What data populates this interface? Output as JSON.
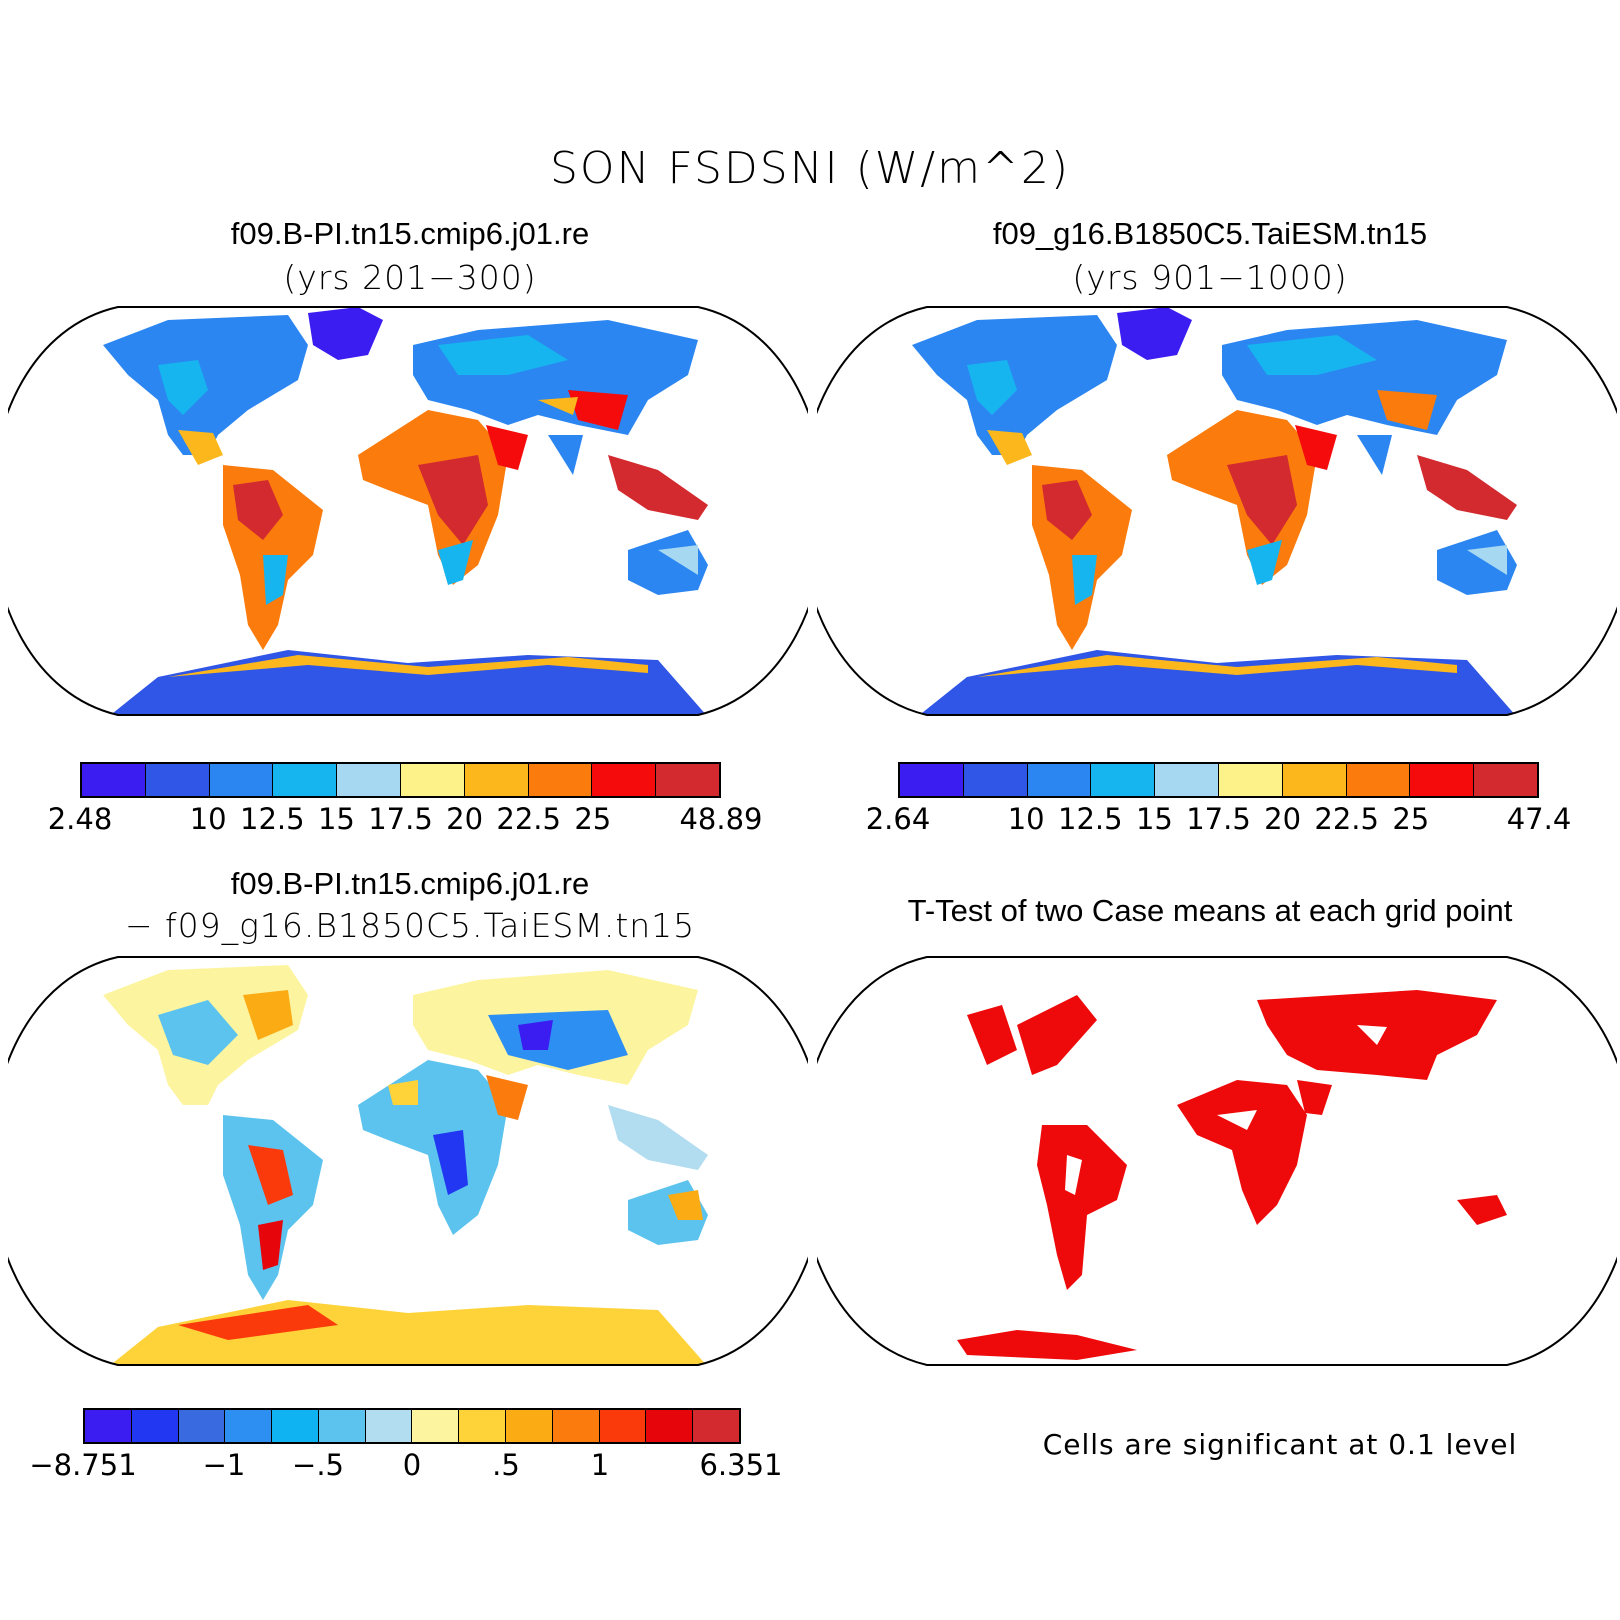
{
  "main_title": "SON FSDSNI (W/m^2)",
  "panels": {
    "top_left": {
      "title": "f09.B-PI.tn15.cmip6.j01.re",
      "subtitle": "(yrs 201−300)",
      "colorbar": {
        "colors": [
          "#3b1df2",
          "#2f56e6",
          "#2b86f1",
          "#16b5ef",
          "#a7d8f2",
          "#fdf28a",
          "#fbb71c",
          "#fb7b0c",
          "#f50b0b",
          "#d22a2e"
        ],
        "labels": [
          "2.48",
          "10",
          "12.5",
          "15",
          "17.5",
          "20",
          "22.5",
          "25",
          "48.89"
        ]
      }
    },
    "top_right": {
      "title": "f09_g16.B1850C5.TaiESM.tn15",
      "subtitle": "(yrs 901−1000)",
      "colorbar": {
        "colors": [
          "#3b1df2",
          "#2f56e6",
          "#2b86f1",
          "#16b5ef",
          "#a7d8f2",
          "#fdf28a",
          "#fbb71c",
          "#fb7b0c",
          "#f50b0b",
          "#d22a2e"
        ],
        "labels": [
          "2.64",
          "10",
          "12.5",
          "15",
          "17.5",
          "20",
          "22.5",
          "25",
          "47.4"
        ]
      }
    },
    "bottom_left": {
      "title": "f09.B-PI.tn15.cmip6.j01.re",
      "subtitle": "− f09_g16.B1850C5.TaiESM.tn15",
      "colorbar": {
        "colors": [
          "#3b1df2",
          "#2137f2",
          "#3a6ae0",
          "#2d8ff2",
          "#0fb3f2",
          "#5bc3ee",
          "#b2dcf0",
          "#fdf4a0",
          "#fed33a",
          "#fbab14",
          "#fb7b0c",
          "#fb3a0c",
          "#e5050b",
          "#d22a2e"
        ],
        "labels": [
          "−8.751",
          "−1",
          "−.5",
          "0",
          ".5",
          "1",
          "6.351"
        ]
      }
    },
    "bottom_right": {
      "title": "T-Test of two Case means at each grid point",
      "note": "Cells are significant at 0.1 level",
      "sig_color": "#ee0a0a"
    }
  }
}
